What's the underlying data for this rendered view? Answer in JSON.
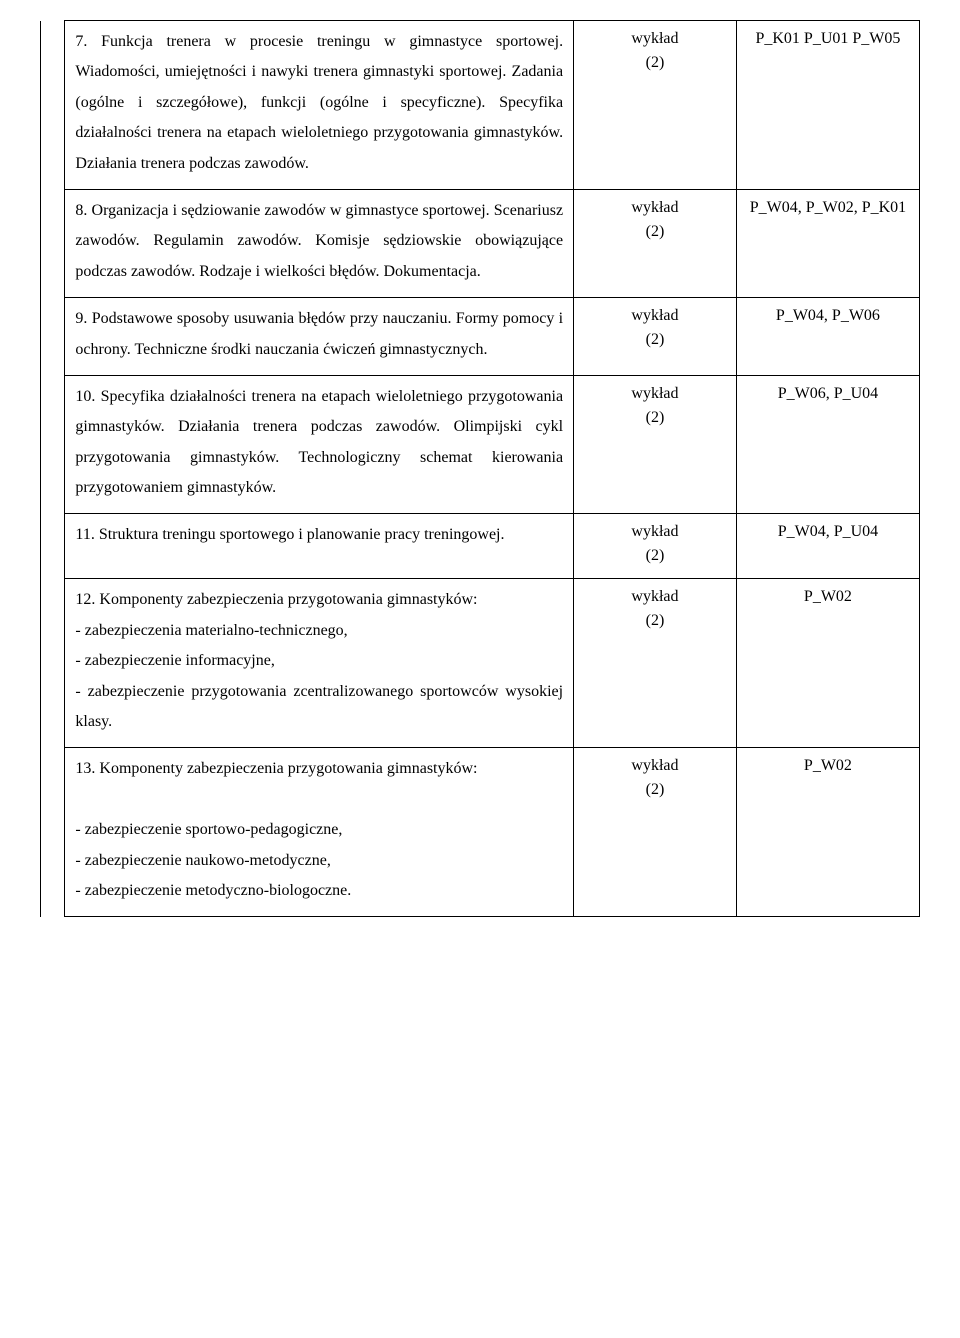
{
  "rows": [
    {
      "content": "7. Funkcja trenera w procesie treningu w gimnastyce sportowej. Wiadomości, umiejętności i nawyki trenera gimnastyki sportowej. Zadania (ogólne i szczegółowe), funkcji (ogólne i specyficzne). Specyfika działalności trenera na etapach wieloletniego przygotowania gimnastyków. Działania trenera podczas zawodów.",
      "form": "wykład",
      "hours": "(2)",
      "codes": "P_K01 P_U01 P_W05"
    },
    {
      "content": "8. Organizacja i sędziowanie zawodów w gimnastyce sportowej. Scenariusz zawodów. Regulamin zawodów. Komisje sędziowskie obowiązujące podczas zawodów. Rodzaje i wielkości błędów. Dokumentacja.",
      "form": "wykład",
      "hours": "(2)",
      "codes": "P_W04, P_W02, P_K01"
    },
    {
      "content": "9. Podstawowe sposoby usuwania błędów przy nauczaniu. Formy pomocy i ochrony. Techniczne środki nauczania ćwiczeń gimnastycznych.",
      "form": "wykład",
      "hours": "(2)",
      "codes": "P_W04, P_W06"
    },
    {
      "content": "10. Specyfika działalności trenera na etapach wieloletniego przygotowania gimnastyków. Działania trenera podczas zawodów. Olimpijski cykl przygotowania gimnastyków. Technologiczny schemat kierowania przygotowaniem gimnastyków.",
      "form": "wykład",
      "hours": "(2)",
      "codes": "P_W06, P_U04"
    },
    {
      "content": "11. Struktura treningu sportowego i planowanie pracy treningowej.",
      "form": "wykład",
      "hours": "(2)",
      "codes": "P_W04, P_U04"
    },
    {
      "content": "12. Komponenty zabezpieczenia przygotowania gimnastyków:\n- zabezpieczenia materialno-technicznego,\n- zabezpieczenie informacyjne,\n- zabezpieczenie przygotowania zcentralizowanego sportowców wysokiej klasy.",
      "form": "wykład",
      "hours": "(2)",
      "codes": "P_W02"
    },
    {
      "content": "13. Komponenty zabezpieczenia przygotowania gimnastyków:\n\n- zabezpieczenie sportowo-pedagogiczne,\n- zabezpieczenie naukowo-metodyczne,\n- zabezpieczenie metodyczno-biologoczne.",
      "form": "wykład",
      "hours": "(2)",
      "codes": "P_W02"
    }
  ]
}
